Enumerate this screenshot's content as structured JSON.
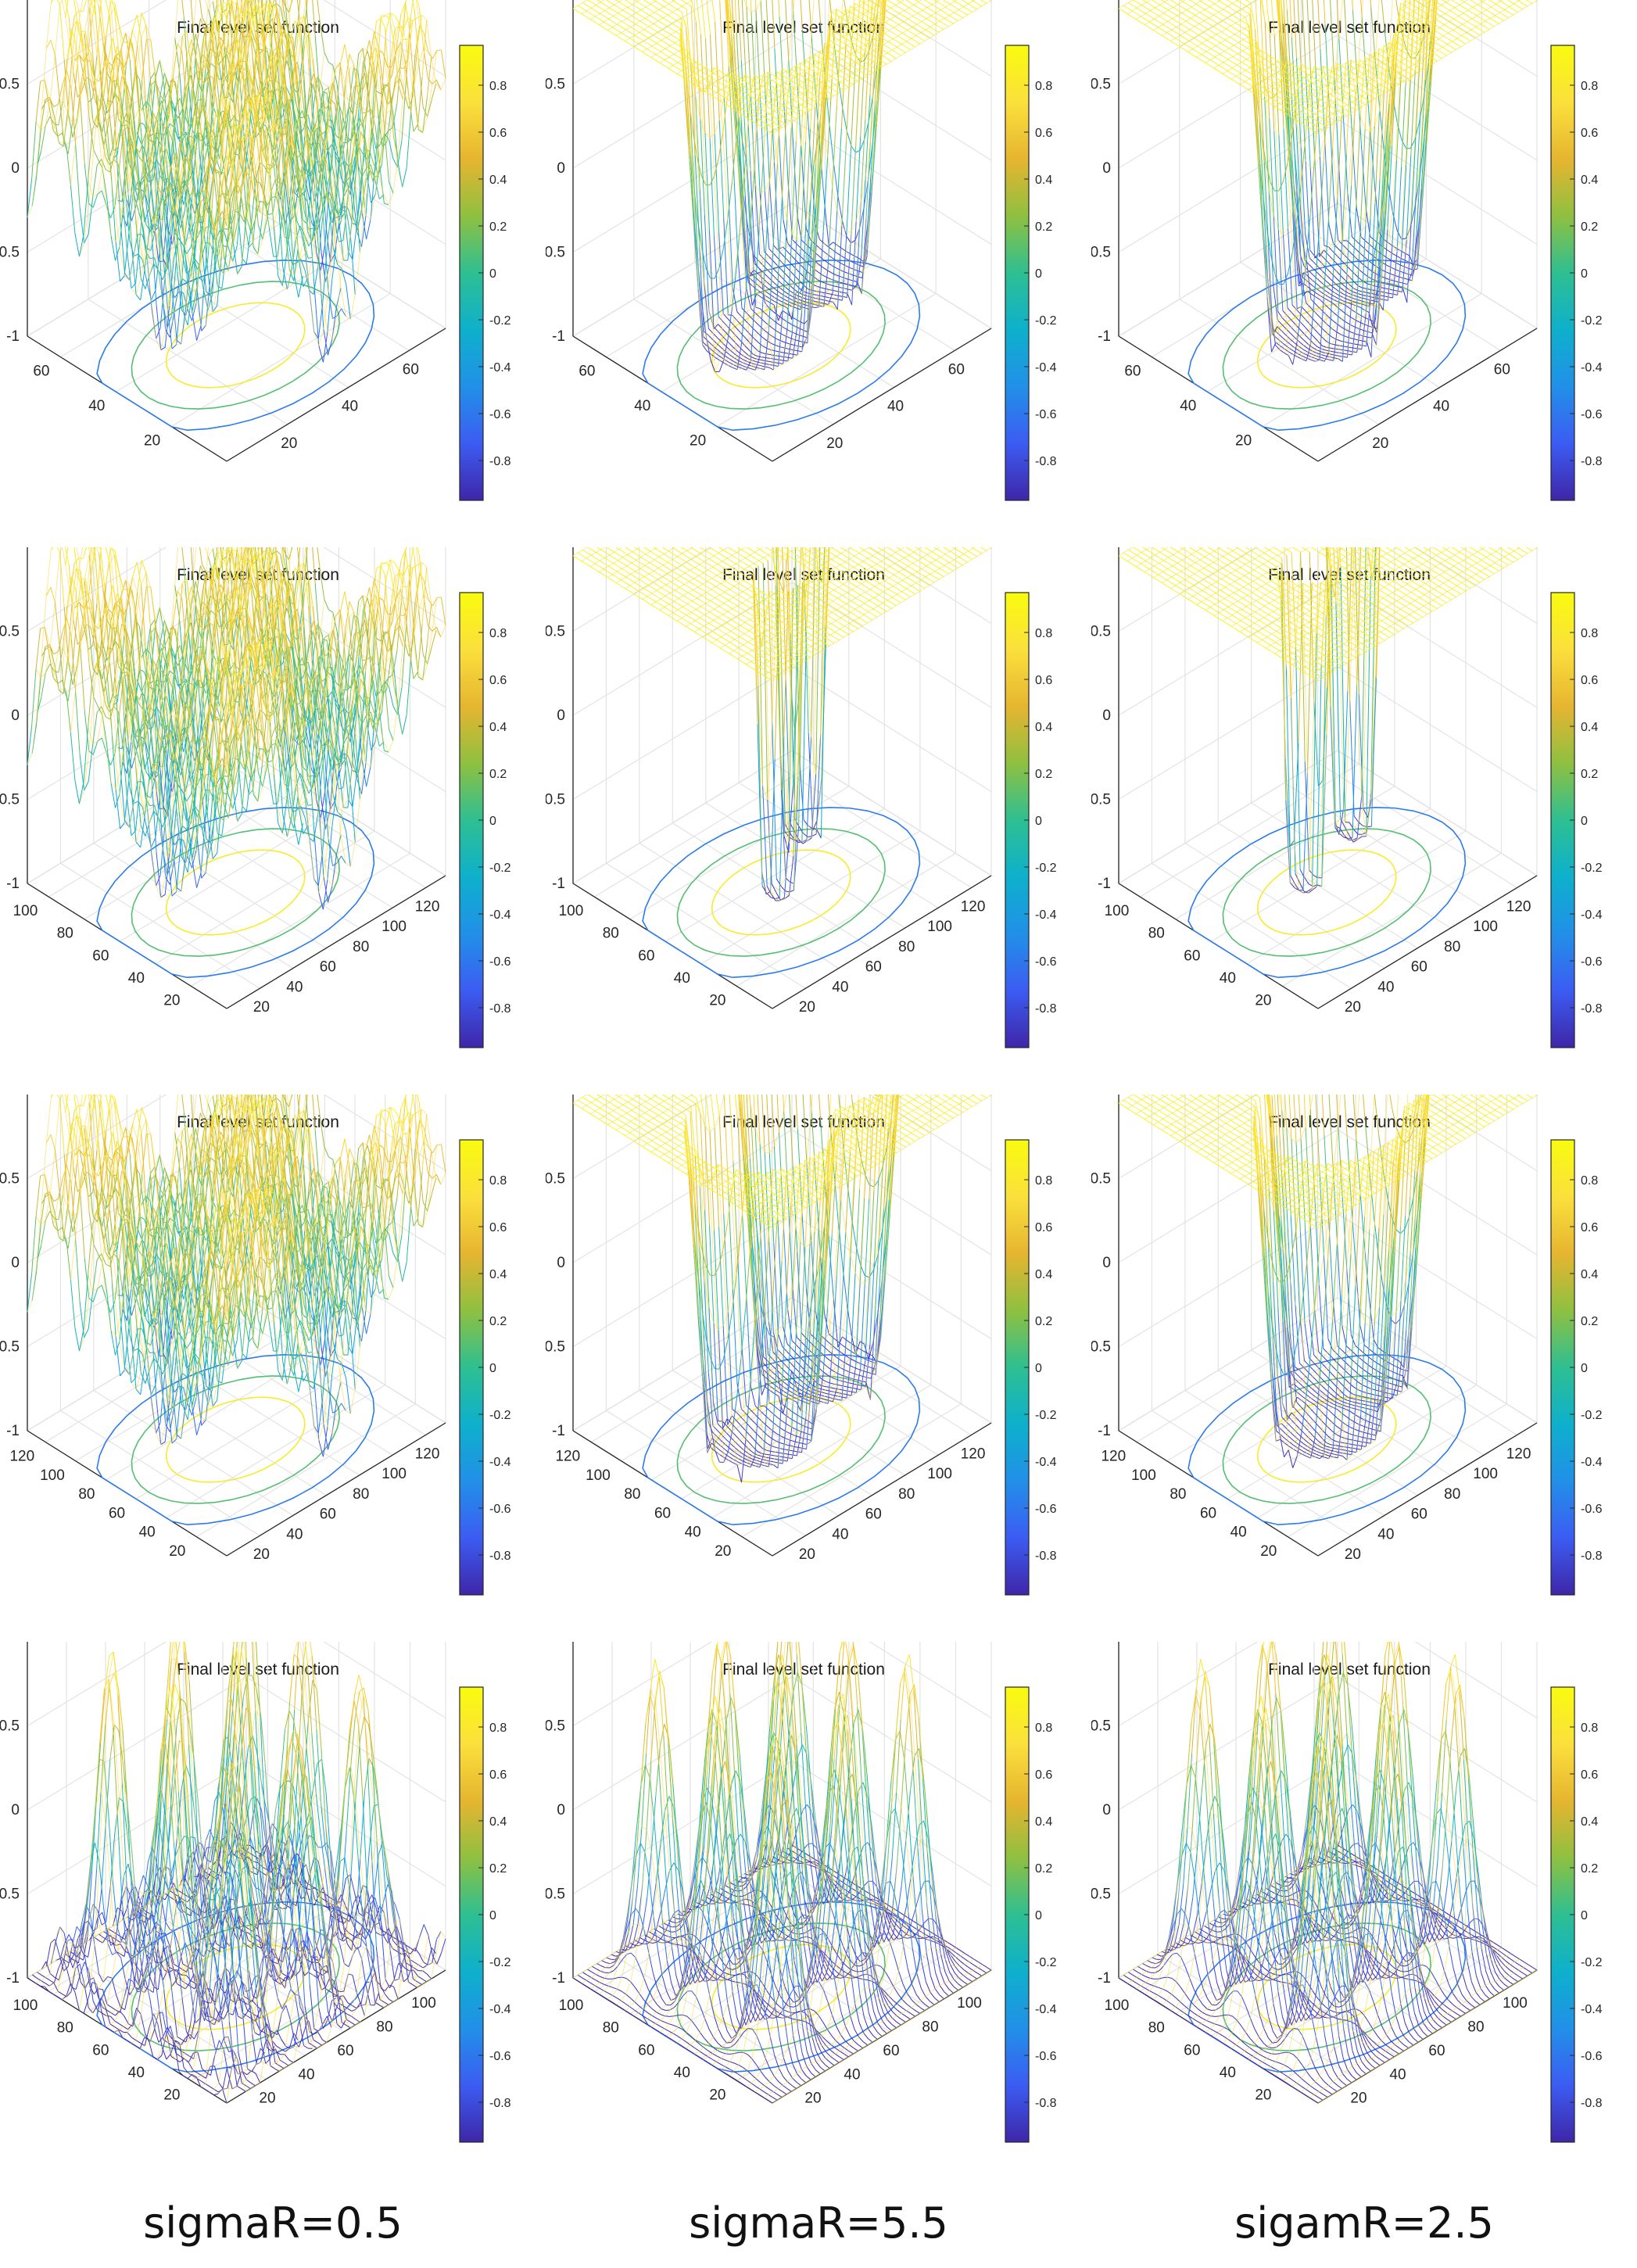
{
  "chart_data": [
    {
      "type": "surface",
      "row": 0,
      "col": 0,
      "title": "Final level set function",
      "pattern": "noisy",
      "zlim": [
        -1,
        1
      ],
      "z_ticks": [
        "-1",
        "-0.5",
        "0",
        "0.5"
      ],
      "x_ticks": [
        "20",
        "40",
        "60"
      ],
      "y_ticks": [
        "20",
        "40",
        "60"
      ],
      "colorbar_ticks": [
        "-0.8",
        "-0.6",
        "-0.4",
        "-0.2",
        "0",
        "0.2",
        "0.4",
        "0.6",
        "0.8"
      ]
    },
    {
      "type": "surface",
      "row": 0,
      "col": 1,
      "title": "Final level set function",
      "pattern": "plateau",
      "zlim": [
        -1,
        1
      ],
      "z_ticks": [
        "-1",
        "-0.5",
        "0",
        "0.5"
      ],
      "x_ticks": [
        "20",
        "40",
        "60"
      ],
      "y_ticks": [
        "20",
        "40",
        "60"
      ],
      "colorbar_ticks": [
        "-0.8",
        "-0.6",
        "-0.4",
        "-0.2",
        "0",
        "0.2",
        "0.4",
        "0.6",
        "0.8"
      ]
    },
    {
      "type": "surface",
      "row": 0,
      "col": 2,
      "title": "Final level set function",
      "pattern": "plateau",
      "zlim": [
        -1,
        1
      ],
      "z_ticks": [
        "-1",
        "-0.5",
        "0",
        "0.5"
      ],
      "x_ticks": [
        "20",
        "40",
        "60"
      ],
      "y_ticks": [
        "20",
        "40",
        "60"
      ],
      "colorbar_ticks": [
        "-0.8",
        "-0.6",
        "-0.4",
        "-0.2",
        "0",
        "0.2",
        "0.4",
        "0.6",
        "0.8"
      ]
    },
    {
      "type": "surface",
      "row": 1,
      "col": 0,
      "title": "Final level set function",
      "pattern": "noisy",
      "zlim": [
        -1,
        1
      ],
      "z_ticks": [
        "-1",
        "-0.5",
        "0",
        "0.5"
      ],
      "x_ticks": [
        "20",
        "40",
        "60",
        "80",
        "100",
        "120"
      ],
      "y_ticks": [
        "20",
        "40",
        "60",
        "80",
        "100"
      ],
      "colorbar_ticks": [
        "-0.8",
        "-0.6",
        "-0.4",
        "-0.2",
        "0",
        "0.2",
        "0.4",
        "0.6",
        "0.8"
      ]
    },
    {
      "type": "surface",
      "row": 1,
      "col": 1,
      "title": "Final level set function",
      "pattern": "thin",
      "zlim": [
        -1,
        1
      ],
      "z_ticks": [
        "-1",
        "-0.5",
        "0",
        "0.5"
      ],
      "x_ticks": [
        "20",
        "40",
        "60",
        "80",
        "100",
        "120"
      ],
      "y_ticks": [
        "20",
        "40",
        "60",
        "80",
        "100"
      ],
      "colorbar_ticks": [
        "-0.8",
        "-0.6",
        "-0.4",
        "-0.2",
        "0",
        "0.2",
        "0.4",
        "0.6",
        "0.8"
      ]
    },
    {
      "type": "surface",
      "row": 1,
      "col": 2,
      "title": "Final level set function",
      "pattern": "thin",
      "zlim": [
        -1,
        1
      ],
      "z_ticks": [
        "-1",
        "-0.5",
        "0",
        "0.5"
      ],
      "x_ticks": [
        "20",
        "40",
        "60",
        "80",
        "100",
        "120"
      ],
      "y_ticks": [
        "20",
        "40",
        "60",
        "80",
        "100"
      ],
      "colorbar_ticks": [
        "-0.8",
        "-0.6",
        "-0.4",
        "-0.2",
        "0",
        "0.2",
        "0.4",
        "0.6",
        "0.8"
      ]
    },
    {
      "type": "surface",
      "row": 2,
      "col": 0,
      "title": "Final level set function",
      "pattern": "noisy",
      "zlim": [
        -1,
        1
      ],
      "z_ticks": [
        "-1",
        "-0.5",
        "0",
        "0.5"
      ],
      "x_ticks": [
        "20",
        "40",
        "60",
        "80",
        "100",
        "120"
      ],
      "y_ticks": [
        "20",
        "40",
        "60",
        "80",
        "100",
        "120"
      ],
      "colorbar_ticks": [
        "-0.8",
        "-0.6",
        "-0.4",
        "-0.2",
        "0",
        "0.2",
        "0.4",
        "0.6",
        "0.8"
      ]
    },
    {
      "type": "surface",
      "row": 2,
      "col": 1,
      "title": "Final level set function",
      "pattern": "plateau",
      "zlim": [
        -1,
        1
      ],
      "z_ticks": [
        "-1",
        "-0.5",
        "0",
        "0.5"
      ],
      "x_ticks": [
        "20",
        "40",
        "60",
        "80",
        "100",
        "120"
      ],
      "y_ticks": [
        "20",
        "40",
        "60",
        "80",
        "100",
        "120"
      ],
      "colorbar_ticks": [
        "-0.8",
        "-0.6",
        "-0.4",
        "-0.2",
        "0",
        "0.2",
        "0.4",
        "0.6",
        "0.8"
      ]
    },
    {
      "type": "surface",
      "row": 2,
      "col": 2,
      "title": "Final level set function",
      "pattern": "plateau",
      "zlim": [
        -1,
        1
      ],
      "z_ticks": [
        "-1",
        "-0.5",
        "0",
        "0.5"
      ],
      "x_ticks": [
        "20",
        "40",
        "60",
        "80",
        "100",
        "120"
      ],
      "y_ticks": [
        "20",
        "40",
        "60",
        "80",
        "100",
        "120"
      ],
      "colorbar_ticks": [
        "-0.8",
        "-0.6",
        "-0.4",
        "-0.2",
        "0",
        "0.2",
        "0.4",
        "0.6",
        "0.8"
      ]
    },
    {
      "type": "surface",
      "row": 3,
      "col": 0,
      "title": "Final level set function",
      "pattern": "noisypeaks",
      "zlim": [
        -1,
        1
      ],
      "z_ticks": [
        "-1",
        "-0.5",
        "0",
        "0.5"
      ],
      "x_ticks": [
        "20",
        "40",
        "60",
        "80",
        "100"
      ],
      "y_ticks": [
        "20",
        "40",
        "60",
        "80",
        "100"
      ],
      "colorbar_ticks": [
        "-0.8",
        "-0.6",
        "-0.4",
        "-0.2",
        "0",
        "0.2",
        "0.4",
        "0.6",
        "0.8"
      ]
    },
    {
      "type": "surface",
      "row": 3,
      "col": 1,
      "title": "Final level set function",
      "pattern": "peaks",
      "zlim": [
        -1,
        1
      ],
      "z_ticks": [
        "-1",
        "-0.5",
        "0",
        "0.5"
      ],
      "x_ticks": [
        "20",
        "40",
        "60",
        "80",
        "100"
      ],
      "y_ticks": [
        "20",
        "40",
        "60",
        "80",
        "100"
      ],
      "colorbar_ticks": [
        "-0.8",
        "-0.6",
        "-0.4",
        "-0.2",
        "0",
        "0.2",
        "0.4",
        "0.6",
        "0.8"
      ]
    },
    {
      "type": "surface",
      "row": 3,
      "col": 2,
      "title": "Final level set function",
      "pattern": "peaks",
      "zlim": [
        -1,
        1
      ],
      "z_ticks": [
        "-1",
        "-0.5",
        "0",
        "0.5"
      ],
      "x_ticks": [
        "20",
        "40",
        "60",
        "80",
        "100"
      ],
      "y_ticks": [
        "20",
        "40",
        "60",
        "80",
        "100"
      ],
      "colorbar_ticks": [
        "-0.8",
        "-0.6",
        "-0.4",
        "-0.2",
        "0",
        "0.2",
        "0.4",
        "0.6",
        "0.8"
      ]
    }
  ],
  "colormap": [
    "#3e26a8",
    "#3c5cf3",
    "#2190e8",
    "#0eb0cc",
    "#2ebf91",
    "#8fc040",
    "#e6b530",
    "#fbe03c",
    "#f9fb0e"
  ],
  "captions": [
    "sigmaR=0.5",
    "sigmaR=5.5",
    "sigamR=2.5"
  ]
}
